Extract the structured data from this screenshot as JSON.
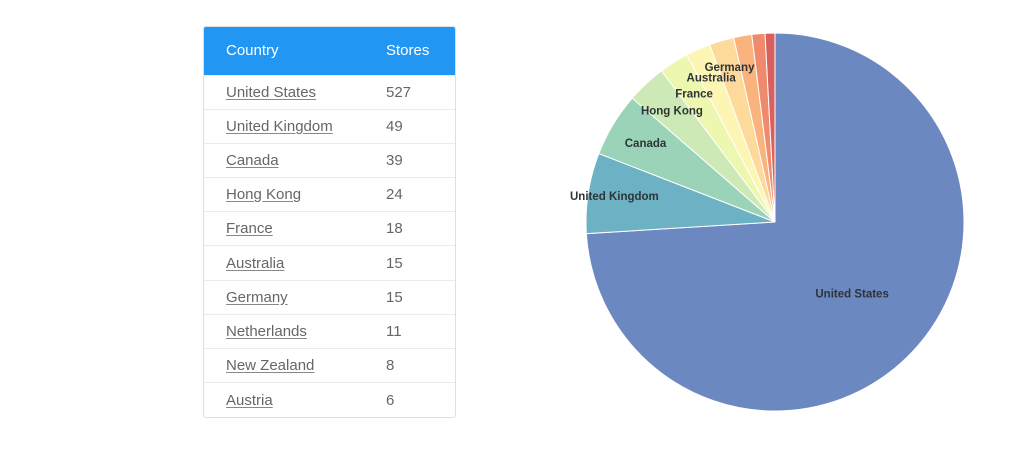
{
  "table": {
    "headers": {
      "country": "Country",
      "stores": "Stores"
    },
    "rows": [
      {
        "country": "United States",
        "stores": "527"
      },
      {
        "country": "United Kingdom",
        "stores": "49"
      },
      {
        "country": "Canada",
        "stores": "39"
      },
      {
        "country": "Hong Kong",
        "stores": "24"
      },
      {
        "country": "France",
        "stores": "18"
      },
      {
        "country": "Australia",
        "stores": "15"
      },
      {
        "country": "Germany",
        "stores": "15"
      },
      {
        "country": "Netherlands",
        "stores": "11"
      },
      {
        "country": "New Zealand",
        "stores": "8"
      },
      {
        "country": "Austria",
        "stores": "6"
      }
    ]
  },
  "colors": {
    "header_bg": "#2196f3",
    "slices": [
      "#6c88c0",
      "#6db1c4",
      "#9bd3b8",
      "#cde9b5",
      "#eef7b0",
      "#fcf5b4",
      "#fdd99a",
      "#fbb37d",
      "#f08a6d",
      "#d9605f"
    ]
  },
  "chart_data": {
    "type": "pie",
    "categories": [
      "United States",
      "United Kingdom",
      "Canada",
      "Hong Kong",
      "France",
      "Australia",
      "Germany",
      "Netherlands",
      "New Zealand",
      "Austria"
    ],
    "values": [
      527,
      49,
      39,
      24,
      18,
      15,
      15,
      11,
      8,
      6
    ],
    "labels_shown": [
      "United States",
      "United Kingdom",
      "Canada",
      "Hong Kong",
      "France",
      "Australia",
      "Germany"
    ],
    "title": ""
  }
}
